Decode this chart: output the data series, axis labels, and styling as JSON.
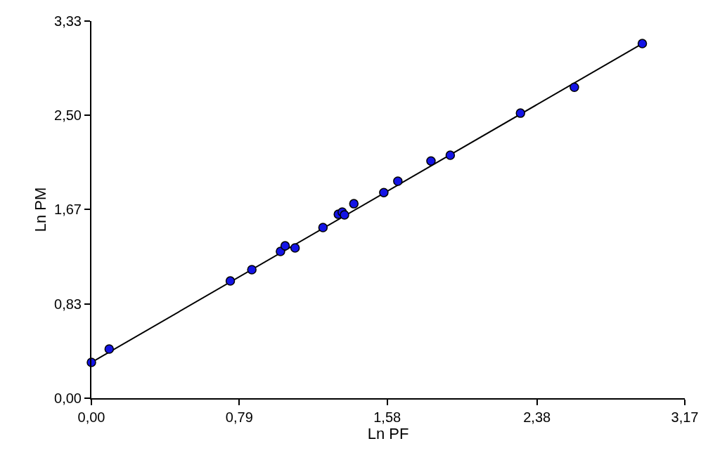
{
  "chart_data": {
    "type": "scatter",
    "xlabel": "Ln PF",
    "ylabel": "Ln PM",
    "xlim": [
      0,
      3.17
    ],
    "ylim": [
      0,
      3.33
    ],
    "xticks": [
      {
        "value": 0,
        "label": "0,00"
      },
      {
        "value": 0.79,
        "label": "0,79"
      },
      {
        "value": 1.58,
        "label": "1,58"
      },
      {
        "value": 2.38,
        "label": "2,38"
      },
      {
        "value": 3.17,
        "label": "3,17"
      }
    ],
    "yticks": [
      {
        "value": 0,
        "label": "0,00"
      },
      {
        "value": 0.83,
        "label": "0,83"
      },
      {
        "value": 1.67,
        "label": "1,67"
      },
      {
        "value": 2.5,
        "label": "2,50"
      },
      {
        "value": 3.33,
        "label": "3,33"
      }
    ],
    "series": [
      {
        "marker": "circle",
        "color": "#1414e6",
        "x": [
          0,
          0.095,
          0.742,
          0.857,
          1.01,
          1.035,
          1.088,
          1.237,
          1.319,
          1.34,
          1.352,
          1.402,
          1.562,
          1.637,
          1.814,
          1.917,
          2.292,
          2.58,
          2.943
        ],
        "values": [
          0.316,
          0.434,
          1.035,
          1.135,
          1.296,
          1.345,
          1.327,
          1.507,
          1.624,
          1.643,
          1.618,
          1.717,
          1.816,
          1.916,
          2.095,
          2.145,
          2.517,
          2.746,
          3.131
        ]
      },
      {
        "type": "line",
        "marker": "none",
        "color": "#000000",
        "line_style": "solid",
        "x": [
          0,
          2.943
        ],
        "values": [
          0.316,
          3.131
        ]
      }
    ]
  }
}
